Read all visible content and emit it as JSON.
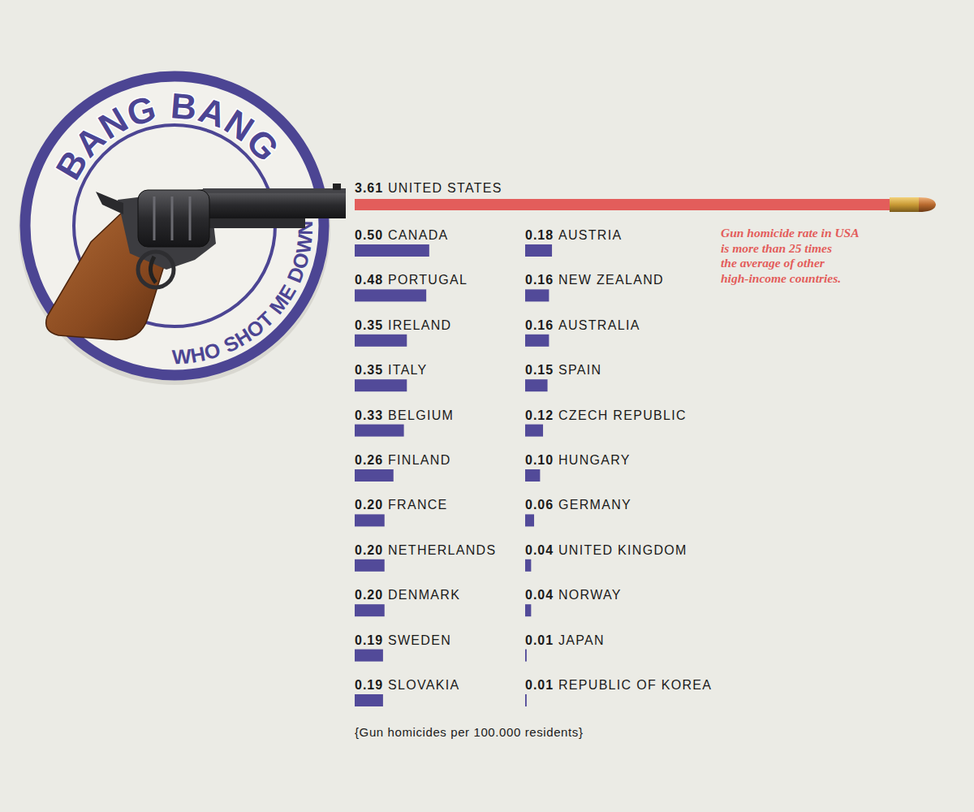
{
  "chart_data": {
    "type": "bar",
    "orientation": "horizontal",
    "title": "BANG BANG",
    "subtitle": "WHO SHOT ME DOWN?",
    "annotation": [
      "Gun homicide rate in USA",
      "is more than 25 times",
      "the average of other",
      "high-income countries."
    ],
    "footnote": "{Gun homicides per 100.000 residents}",
    "categories": [
      "UNITED STATES",
      "CANADA",
      "PORTUGAL",
      "IRELAND",
      "ITALY",
      "BELGIUM",
      "FINLAND",
      "FRANCE",
      "NETHERLANDS",
      "DENMARK",
      "SWEDEN",
      "SLOVAKIA",
      "AUSTRIA",
      "NEW ZEALAND",
      "AUSTRALIA",
      "SPAIN",
      "CZECH REPUBLIC",
      "HUNGARY",
      "GERMANY",
      "UNITED KINGDOM",
      "NORWAY",
      "JAPAN",
      "REPUBLIC OF KOREA"
    ],
    "values": [
      3.61,
      0.5,
      0.48,
      0.35,
      0.35,
      0.33,
      0.26,
      0.2,
      0.2,
      0.2,
      0.19,
      0.19,
      0.18,
      0.16,
      0.16,
      0.15,
      0.12,
      0.1,
      0.06,
      0.04,
      0.04,
      0.01,
      0.01
    ],
    "value_labels": [
      "3.61",
      "0.50",
      "0.48",
      "0.35",
      "0.35",
      "0.33",
      "0.26",
      "0.20",
      "0.20",
      "0.20",
      "0.19",
      "0.19",
      "0.18",
      "0.16",
      "0.16",
      "0.15",
      "0.12",
      "0.10",
      "0.06",
      "0.04",
      "0.04",
      "0.01",
      "0.01"
    ],
    "colors": [
      "#e35d5b",
      "#524a99",
      "#524a99",
      "#524a99",
      "#524a99",
      "#524a99",
      "#524a99",
      "#524a99",
      "#524a99",
      "#524a99",
      "#524a99",
      "#524a99",
      "#524a99",
      "#524a99",
      "#524a99",
      "#524a99",
      "#524a99",
      "#524a99",
      "#524a99",
      "#524a99",
      "#524a99",
      "#524a99",
      "#524a99"
    ],
    "data_labels": true,
    "tick_labels": false
  }
}
